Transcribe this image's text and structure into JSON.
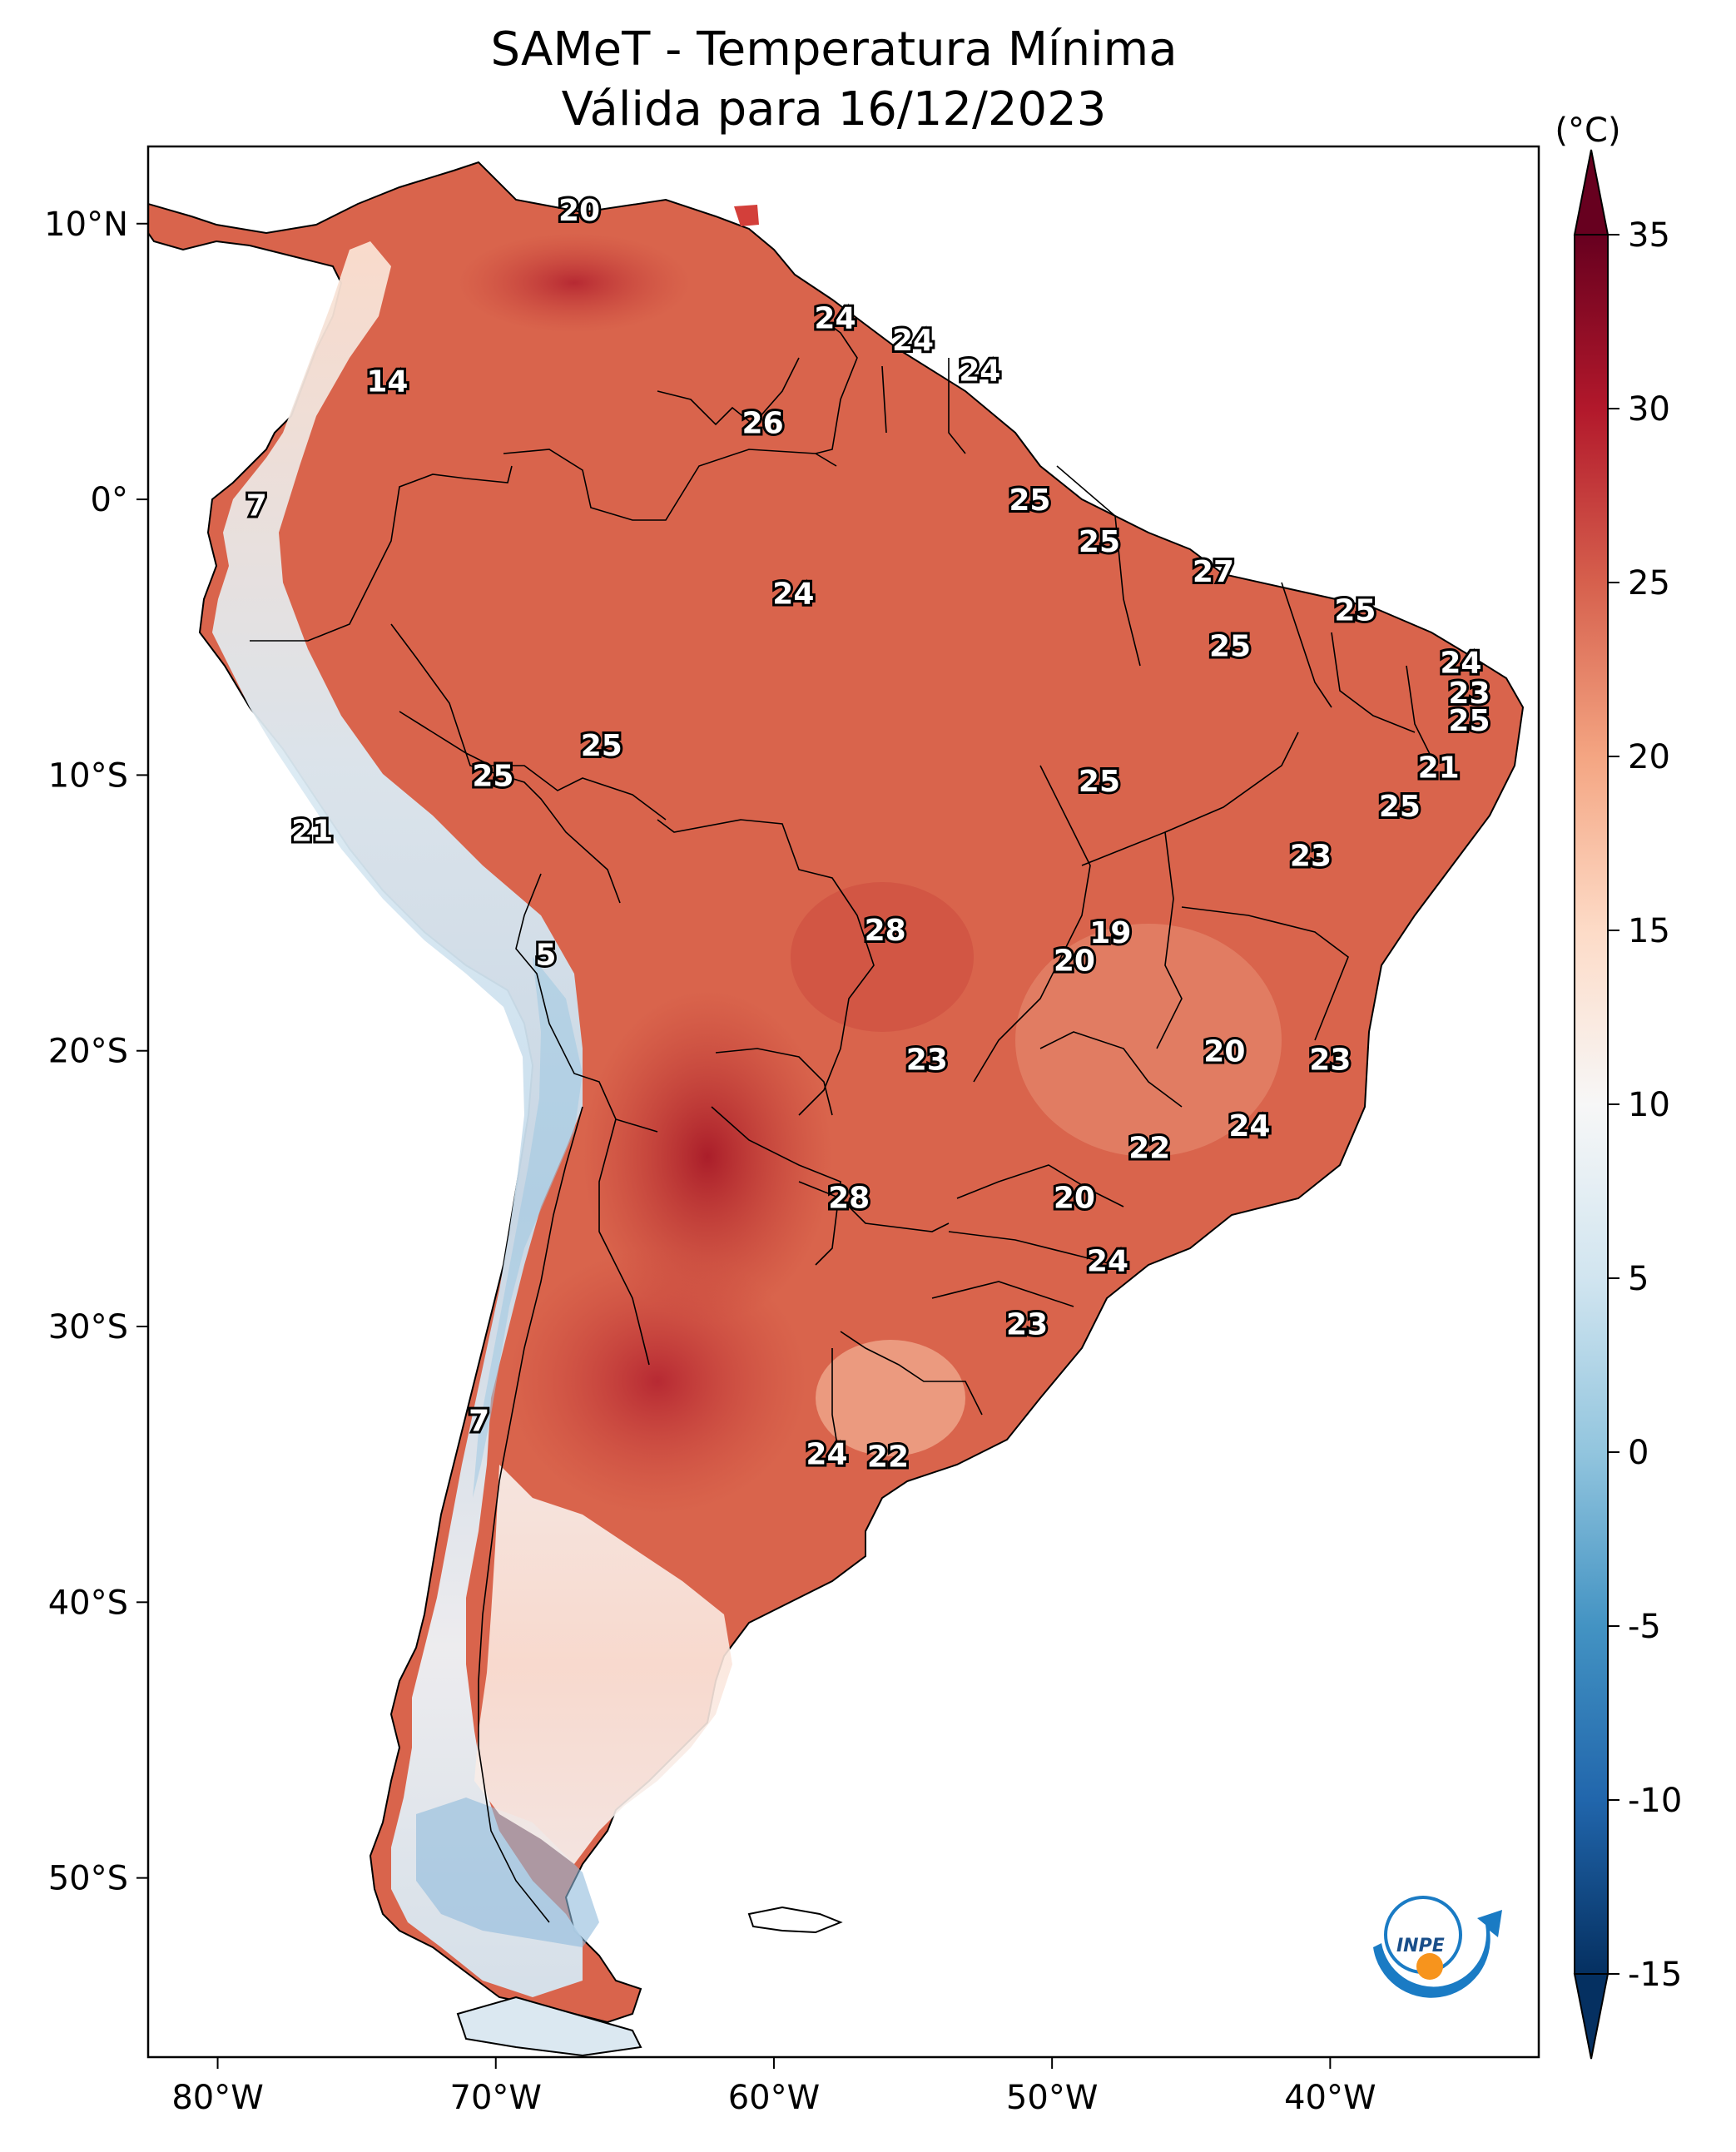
{
  "title": {
    "line1": "SAMeT - Temperatura Mínima",
    "line2": "Válida para 16/12/2023"
  },
  "map": {
    "lon_ticks": [
      "80°W",
      "70°W",
      "60°W",
      "50°W",
      "40°W"
    ],
    "lat_ticks": [
      "10°N",
      "0°",
      "10°S",
      "20°S",
      "30°S",
      "40°S",
      "50°S"
    ],
    "lon_tick_values": [
      -80,
      -70,
      -60,
      -50,
      -40
    ],
    "lat_tick_values": [
      10,
      0,
      -10,
      -20,
      -30,
      -40,
      -50
    ],
    "extent": {
      "lon_min": -82.5,
      "lon_max": -32.5,
      "lat_min": -56.5,
      "lat_max": 12.8
    }
  },
  "colorbar": {
    "unit": "(°C)",
    "ticks": [
      "35",
      "30",
      "25",
      "20",
      "15",
      "10",
      "5",
      "0",
      "-5",
      "-10",
      "-15"
    ],
    "tick_values": [
      35,
      30,
      25,
      20,
      15,
      10,
      5,
      0,
      -5,
      -10,
      -15
    ],
    "range": [
      -15,
      35
    ],
    "colors": [
      "#053061",
      "#2166ac",
      "#4393c3",
      "#92c5de",
      "#d1e5f0",
      "#f7f7f7",
      "#fddbc7",
      "#f4a582",
      "#d6604d",
      "#b2182b",
      "#67001f"
    ]
  },
  "logo": "INPE",
  "station_labels": [
    {
      "text": "20",
      "lon": -67.0,
      "lat": 10.5
    },
    {
      "text": "24",
      "lon": -57.8,
      "lat": 6.6
    },
    {
      "text": "24",
      "lon": -55.0,
      "lat": 5.8
    },
    {
      "text": "24",
      "lon": -52.6,
      "lat": 4.7
    },
    {
      "text": "14",
      "lon": -73.9,
      "lat": 4.3
    },
    {
      "text": "26",
      "lon": -60.4,
      "lat": 2.8
    },
    {
      "text": "25",
      "lon": -50.8,
      "lat": 0.0
    },
    {
      "text": "7",
      "lon": -78.6,
      "lat": -0.2
    },
    {
      "text": "25",
      "lon": -48.3,
      "lat": -1.5
    },
    {
      "text": "27",
      "lon": -44.2,
      "lat": -2.6
    },
    {
      "text": "24",
      "lon": -59.3,
      "lat": -3.4
    },
    {
      "text": "25",
      "lon": -39.1,
      "lat": -4.0
    },
    {
      "text": "25",
      "lon": -43.6,
      "lat": -5.3
    },
    {
      "text": "24",
      "lon": -35.3,
      "lat": -5.9
    },
    {
      "text": "23",
      "lon": -35.0,
      "lat": -7.0
    },
    {
      "text": "25",
      "lon": -35.0,
      "lat": -8.0
    },
    {
      "text": "25",
      "lon": -66.2,
      "lat": -8.9
    },
    {
      "text": "21",
      "lon": -36.1,
      "lat": -9.7
    },
    {
      "text": "25",
      "lon": -70.1,
      "lat": -10.0
    },
    {
      "text": "25",
      "lon": -48.3,
      "lat": -10.2
    },
    {
      "text": "25",
      "lon": -37.5,
      "lat": -11.1
    },
    {
      "text": "21",
      "lon": -76.6,
      "lat": -12.0
    },
    {
      "text": "23",
      "lon": -40.7,
      "lat": -12.9
    },
    {
      "text": "28",
      "lon": -56.0,
      "lat": -15.6
    },
    {
      "text": "19",
      "lon": -47.9,
      "lat": -15.7
    },
    {
      "text": "5",
      "lon": -68.2,
      "lat": -16.5
    },
    {
      "text": "20",
      "lon": -49.2,
      "lat": -16.7
    },
    {
      "text": "20",
      "lon": -43.8,
      "lat": -20.0
    },
    {
      "text": "23",
      "lon": -54.5,
      "lat": -20.3
    },
    {
      "text": "23",
      "lon": -40.0,
      "lat": -20.3
    },
    {
      "text": "24",
      "lon": -42.9,
      "lat": -22.7
    },
    {
      "text": "22",
      "lon": -46.5,
      "lat": -23.5
    },
    {
      "text": "28",
      "lon": -57.3,
      "lat": -25.3
    },
    {
      "text": "20",
      "lon": -49.2,
      "lat": -25.3
    },
    {
      "text": "24",
      "lon": -48.0,
      "lat": -27.6
    },
    {
      "text": "23",
      "lon": -50.9,
      "lat": -29.9
    },
    {
      "text": "7",
      "lon": -70.6,
      "lat": -33.4
    },
    {
      "text": "24",
      "lon": -58.1,
      "lat": -34.6
    },
    {
      "text": "22",
      "lon": -55.9,
      "lat": -34.7
    }
  ]
}
